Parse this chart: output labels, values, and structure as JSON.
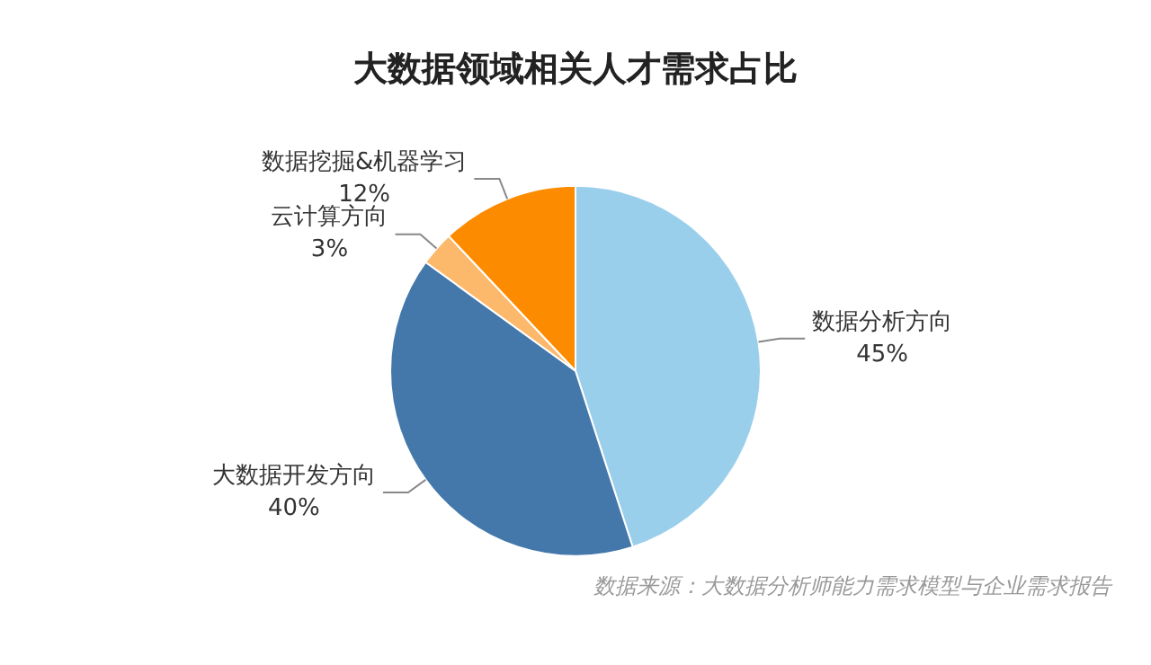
{
  "chart_data": {
    "type": "pie",
    "title": "大数据领域相关人才需求占比",
    "categories": [
      "数据分析方向",
      "大数据开发方向",
      "云计算方向",
      "数据挖掘&机器学习"
    ],
    "values": [
      45,
      40,
      3,
      12
    ],
    "value_labels": [
      "45%",
      "40%",
      "3%",
      "12%"
    ],
    "colors": [
      "#9acfec",
      "#4478ab",
      "#fdb96b",
      "#fd8b00"
    ],
    "legend": false,
    "annotations": [
      "数据来源：大数据分析师能力需求模型与企业需求报告"
    ]
  }
}
